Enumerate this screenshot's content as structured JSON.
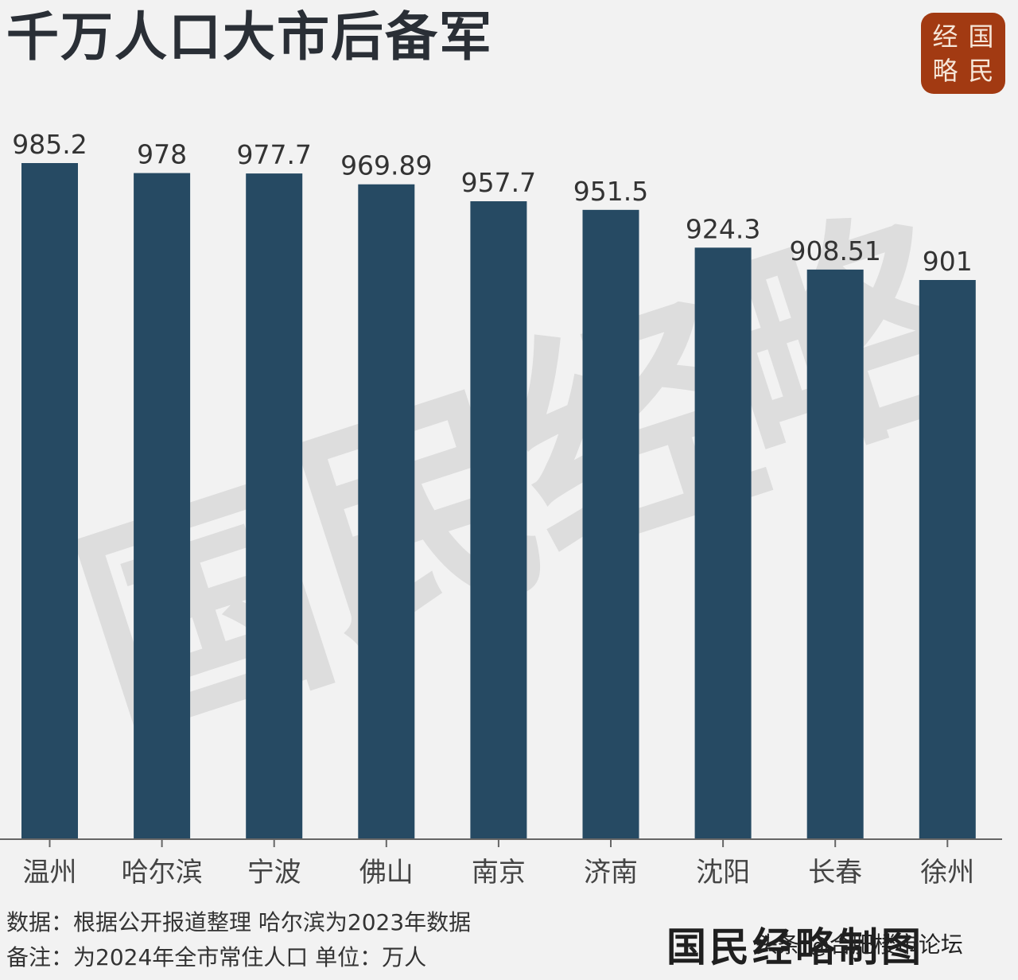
{
  "title": "千万人口大市后备军",
  "logo": {
    "chars": [
      "经",
      "国",
      "略",
      "民"
    ]
  },
  "watermark": [
    "国",
    "民",
    "经",
    "略"
  ],
  "chart_data": {
    "type": "bar",
    "title": "千万人口大市后备军",
    "categories": [
      "温州",
      "哈尔滨",
      "宁波",
      "佛山",
      "南京",
      "济南",
      "沈阳",
      "长春",
      "徐州"
    ],
    "values": [
      985.2,
      978,
      977.7,
      969.89,
      957.7,
      951.5,
      924.3,
      908.51,
      901
    ],
    "value_labels": [
      "985.2",
      "978",
      "977.7",
      "969.89",
      "957.7",
      "951.5",
      "924.3",
      "908.51",
      "901"
    ],
    "ylim": [
      0,
      1000
    ],
    "bar_color": "#264a63",
    "grid": false,
    "legend": "none"
  },
  "footer": {
    "source": "数据：根据公开报道整理 哈尔滨为2023年数据",
    "note": "备注：为2024年全市常住人口   单位：万人",
    "brand": "国民经略制图",
    "credit": "头条 @合肥楼市论坛"
  }
}
